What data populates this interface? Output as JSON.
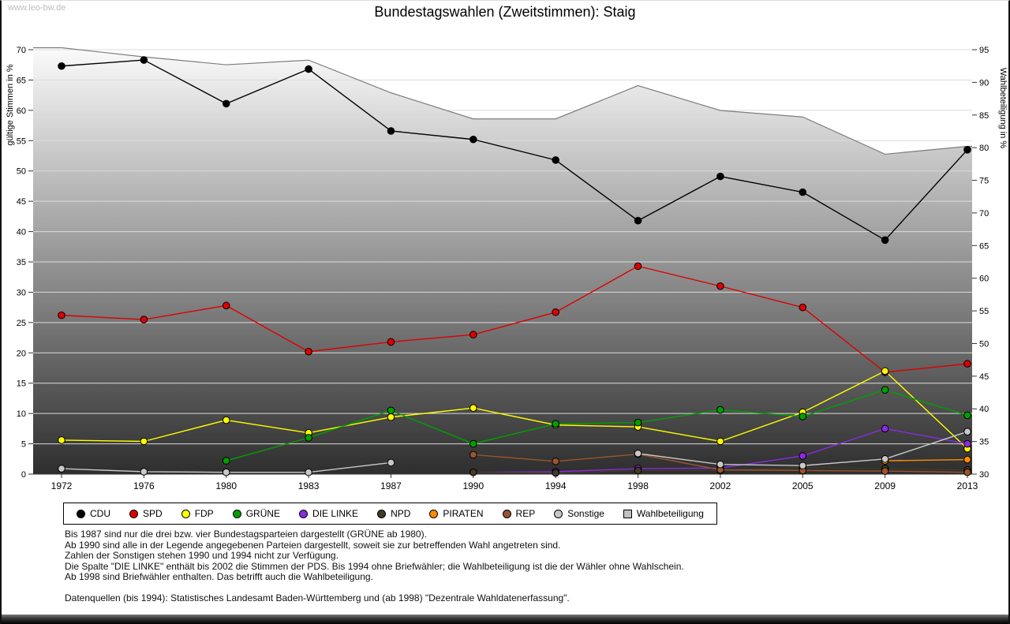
{
  "watermark": "www.leo-bw.de",
  "title": "Bundestagswahlen (Zweitstimmen): Staig",
  "chart_data": {
    "type": "line",
    "title": "Bundestagswahlen (Zweitstimmen): Staig",
    "categories": [
      "1972",
      "1976",
      "1980",
      "1983",
      "1987",
      "1990",
      "1994",
      "1998",
      "2002",
      "2005",
      "2009",
      "2013"
    ],
    "left_axis": {
      "label": "gültige Stimmen in %",
      "min": 0,
      "max": 70,
      "step": 5
    },
    "right_axis": {
      "label": "Wahlbeteiligung in %",
      "min": 30,
      "max": 95,
      "step": 5
    },
    "grid": true,
    "legend_position": "bottom",
    "series": [
      {
        "name": "CDU",
        "color": "#000000",
        "values": [
          67.3,
          68.3,
          61.1,
          66.8,
          56.6,
          55.2,
          51.8,
          41.8,
          49.1,
          46.5,
          38.6,
          53.5
        ]
      },
      {
        "name": "SPD",
        "color": "#dd0000",
        "values": [
          26.2,
          25.5,
          27.8,
          20.2,
          21.8,
          23.0,
          26.7,
          34.3,
          31.0,
          27.5,
          16.8,
          18.2
        ]
      },
      {
        "name": "FDP",
        "color": "#ffff00",
        "values": [
          5.6,
          5.4,
          8.9,
          6.8,
          9.4,
          10.9,
          8.1,
          7.8,
          5.4,
          10.2,
          17.0,
          4.2
        ]
      },
      {
        "name": "GRÜNE",
        "color": "#00a000",
        "values": [
          null,
          null,
          2.2,
          6.0,
          10.5,
          5.0,
          8.3,
          8.5,
          10.6,
          9.5,
          13.9,
          9.7
        ]
      },
      {
        "name": "DIE LINKE",
        "color": "#8a2be2",
        "values": [
          null,
          null,
          null,
          null,
          null,
          0.3,
          0.4,
          0.9,
          1.0,
          3.0,
          7.5,
          5.0
        ]
      },
      {
        "name": "NPD",
        "color": "#433a28",
        "values": [
          null,
          null,
          null,
          null,
          null,
          0.3,
          0.2,
          0.6,
          0.6,
          1.1,
          0.9,
          0.7
        ]
      },
      {
        "name": "PIRATEN",
        "color": "#ff8c00",
        "values": [
          null,
          null,
          null,
          null,
          null,
          null,
          null,
          null,
          null,
          null,
          2.2,
          2.4
        ]
      },
      {
        "name": "REP",
        "color": "#99552b",
        "values": [
          null,
          null,
          null,
          null,
          null,
          3.2,
          2.1,
          3.3,
          0.7,
          0.6,
          0.5,
          0.3
        ]
      },
      {
        "name": "Sonstige",
        "color": "#c8c8c8",
        "values": [
          0.9,
          0.4,
          0.3,
          0.3,
          1.9,
          null,
          null,
          3.4,
          1.6,
          1.4,
          2.5,
          7.0
        ]
      }
    ],
    "turnout": {
      "name": "Wahlbeteiligung",
      "axis": "right",
      "swatch_color": "#c0c0c0",
      "line_color": "#7d7d7d",
      "area_gradient": [
        "#fbfbfb",
        "#2e2e2e"
      ],
      "values": [
        95.3,
        93.9,
        92.7,
        93.4,
        88.4,
        84.4,
        84.4,
        89.5,
        85.7,
        84.7,
        79.0,
        80.2
      ]
    }
  },
  "footnotes": [
    "Bis 1987 sind nur die drei bzw. vier Bundestagsparteien dargestellt (GRÜNE ab 1980).",
    "Ab 1990 sind alle in der Legende angegebenen Parteien dargestellt, soweit sie zur betreffenden Wahl angetreten sind.",
    "Zahlen der Sonstigen stehen 1990 und 1994 nicht zur Verfügung.",
    "Die Spalte \"DIE LINKE\" enthält bis 2002 die Stimmen der PDS. Bis 1994 ohne Briefwähler; die Wahlbeteiligung ist die der Wähler ohne Wahlschein.",
    "Ab 1998 sind Briefwähler enthalten. Das betrifft auch die Wahlbeteiligung.",
    "",
    "Datenquellen (bis 1994): Statistisches Landesamt Baden-Württemberg und (ab 1998) \"Dezentrale Wahldatenerfassung\"."
  ]
}
